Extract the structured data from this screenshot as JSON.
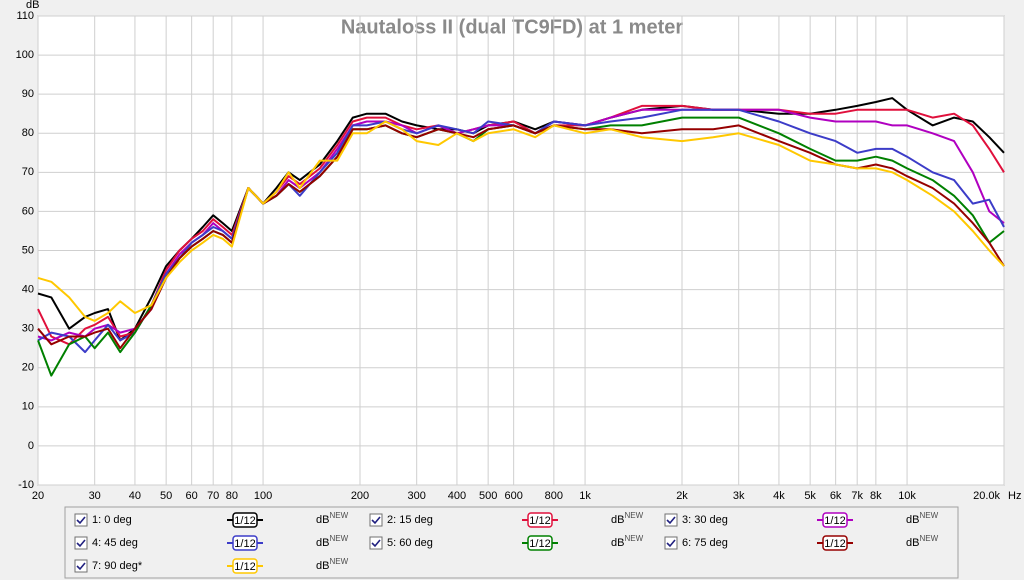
{
  "chart_data": {
    "type": "line",
    "title": "Nautaloss II (dual TC9FD) at 1 meter",
    "ylabel": "dB",
    "xlabel": "Hz",
    "xscale": "log",
    "grid": true,
    "legend": "bottom",
    "xlim": [
      20,
      20000
    ],
    "ylim": [
      -10,
      110
    ],
    "yticks": [
      -10,
      0,
      10,
      20,
      30,
      40,
      50,
      60,
      70,
      80,
      90,
      100,
      110
    ],
    "xticks": [
      20,
      30,
      40,
      50,
      60,
      70,
      80,
      100,
      200,
      300,
      400,
      500,
      600,
      800,
      {
        "value": 1000,
        "label": "1k"
      },
      {
        "value": 2000,
        "label": "2k"
      },
      {
        "value": 3000,
        "label": "3k"
      },
      {
        "value": 4000,
        "label": "4k"
      },
      {
        "value": 5000,
        "label": "5k"
      },
      {
        "value": 6000,
        "label": "6k"
      },
      {
        "value": 7000,
        "label": "7k"
      },
      {
        "value": 8000,
        "label": "8k"
      },
      {
        "value": 10000,
        "label": "10k"
      },
      {
        "value": 20000,
        "label": "20.0k"
      }
    ],
    "x": [
      20,
      22,
      25,
      28,
      30,
      33,
      36,
      40,
      45,
      50,
      55,
      60,
      65,
      70,
      75,
      80,
      90,
      100,
      110,
      120,
      130,
      150,
      170,
      190,
      210,
      240,
      270,
      300,
      350,
      400,
      450,
      500,
      600,
      700,
      800,
      1000,
      1200,
      1500,
      2000,
      2500,
      3000,
      4000,
      5000,
      6000,
      7000,
      8000,
      9000,
      10000,
      12000,
      14000,
      16000,
      18000,
      20000
    ],
    "series": [
      {
        "name": "1: 0 deg",
        "color": "#000000",
        "smoothing": "1/12",
        "unit": "dB",
        "badge": "NEW",
        "values": [
          39,
          38,
          30,
          33,
          34,
          35,
          27,
          30,
          38,
          46,
          50,
          53,
          56,
          59,
          57,
          55,
          66,
          62,
          66,
          70,
          68,
          72,
          78,
          84,
          85,
          85,
          83,
          82,
          81,
          81,
          80,
          82,
          83,
          81,
          83,
          82,
          84,
          86,
          87,
          86,
          86,
          85,
          85,
          86,
          87,
          88,
          89,
          86,
          82,
          84,
          83,
          79,
          75
        ]
      },
      {
        "name": "2: 15 deg",
        "color": "#e0103c",
        "smoothing": "1/12",
        "unit": "dB",
        "badge": "NEW",
        "values": [
          35,
          28,
          26,
          30,
          31,
          33,
          28,
          29,
          36,
          45,
          50,
          53,
          55,
          58,
          56,
          54,
          66,
          62,
          65,
          69,
          67,
          71,
          77,
          83,
          84,
          84,
          82,
          81,
          82,
          80,
          81,
          82,
          83,
          80,
          82,
          82,
          84,
          87,
          87,
          86,
          86,
          86,
          85,
          85,
          86,
          86,
          86,
          86,
          84,
          85,
          82,
          76,
          70
        ]
      },
      {
        "name": "3: 30 deg",
        "color": "#b000c0",
        "smoothing": "1/12",
        "unit": "dB",
        "badge": "NEW",
        "values": [
          28,
          27,
          29,
          28,
          30,
          31,
          29,
          30,
          35,
          44,
          49,
          52,
          54,
          57,
          55,
          53,
          66,
          62,
          64,
          68,
          66,
          70,
          76,
          82,
          83,
          83,
          82,
          80,
          82,
          80,
          81,
          82,
          82,
          80,
          83,
          82,
          84,
          86,
          86,
          86,
          86,
          86,
          84,
          83,
          83,
          83,
          82,
          82,
          80,
          78,
          70,
          60,
          57
        ]
      },
      {
        "name": "4: 45 deg",
        "color": "#3c3cc8",
        "smoothing": "1/12",
        "unit": "dB",
        "badge": "NEW",
        "values": [
          27,
          29,
          28,
          24,
          27,
          31,
          27,
          29,
          36,
          44,
          48,
          52,
          54,
          56,
          55,
          53,
          66,
          62,
          64,
          67,
          64,
          70,
          75,
          82,
          82,
          83,
          81,
          80,
          82,
          81,
          80,
          83,
          82,
          80,
          83,
          82,
          83,
          84,
          86,
          86,
          86,
          83,
          80,
          78,
          75,
          76,
          76,
          74,
          70,
          68,
          62,
          63,
          56
        ]
      },
      {
        "name": "5: 60 deg",
        "color": "#008000",
        "smoothing": "1/12",
        "unit": "dB",
        "badge": "NEW",
        "values": [
          27,
          18,
          26,
          28,
          25,
          29,
          24,
          29,
          36,
          43,
          48,
          51,
          53,
          55,
          54,
          52,
          66,
          62,
          64,
          67,
          65,
          69,
          74,
          81,
          81,
          82,
          80,
          79,
          81,
          80,
          78,
          81,
          82,
          80,
          82,
          81,
          82,
          82,
          84,
          84,
          84,
          80,
          76,
          73,
          73,
          74,
          73,
          71,
          68,
          64,
          59,
          52,
          55
        ]
      },
      {
        "name": "6: 75 deg",
        "color": "#960000",
        "smoothing": "1/12",
        "unit": "dB",
        "badge": "NEW",
        "values": [
          30,
          26,
          28,
          28,
          29,
          30,
          25,
          30,
          35,
          43,
          48,
          51,
          53,
          55,
          54,
          52,
          66,
          62,
          64,
          67,
          65,
          69,
          74,
          81,
          81,
          82,
          80,
          79,
          81,
          80,
          79,
          81,
          82,
          80,
          82,
          81,
          81,
          80,
          81,
          81,
          82,
          78,
          75,
          72,
          71,
          72,
          71,
          69,
          66,
          62,
          57,
          52,
          46
        ]
      },
      {
        "name": "7: 90 deg*",
        "color": "#ffc800",
        "smoothing": "1/12",
        "unit": "dB",
        "badge": "NEW",
        "values": [
          43,
          42,
          38,
          33,
          32,
          34,
          37,
          34,
          36,
          43,
          47,
          50,
          52,
          54,
          53,
          51,
          66,
          62,
          65,
          70,
          66,
          73,
          73,
          80,
          80,
          83,
          81,
          78,
          77,
          80,
          78,
          80,
          81,
          79,
          82,
          80,
          81,
          79,
          78,
          79,
          80,
          77,
          73,
          72,
          71,
          71,
          70,
          68,
          64,
          60,
          55,
          50,
          46
        ]
      }
    ]
  }
}
